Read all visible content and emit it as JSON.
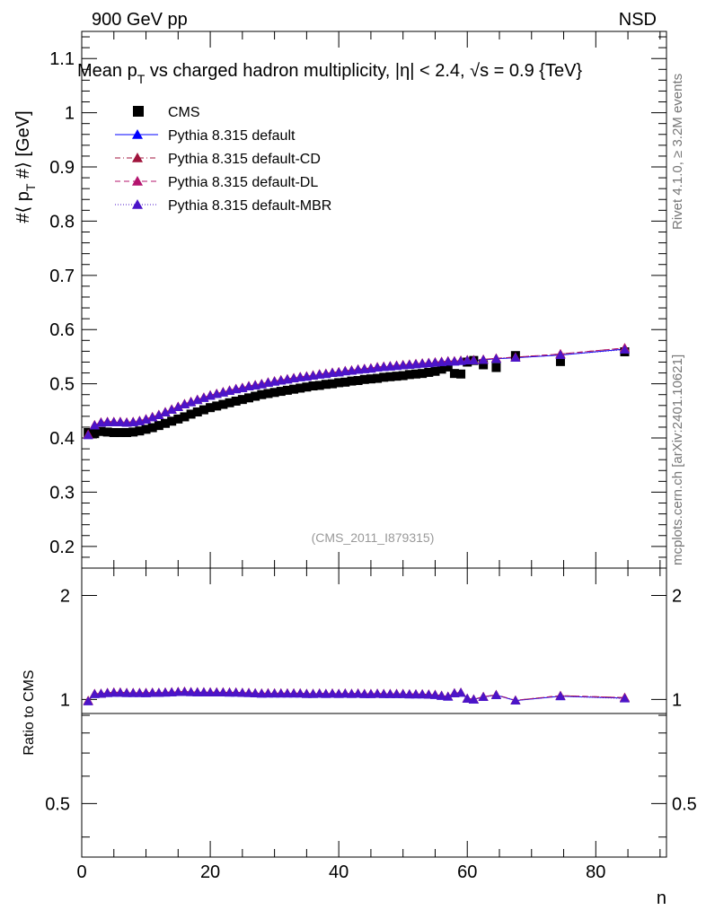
{
  "header": {
    "left": "900 GeV pp",
    "right": "NSD",
    "title": "Mean p",
    "title_sub": "T",
    "title_rest": " vs charged hadron multiplicity, |η| < 2.4, √s = 0.9 {TeV}"
  },
  "side_labels": {
    "rivet": "Rivet 4.1.0, ≥ 3.2M events",
    "mcplots": "mcplots.cern.ch [arXiv:2401.10621]"
  },
  "watermark": "(CMS_2011_I879315)",
  "colors": {
    "cms": "#000000",
    "default": "#0000ff",
    "cd": "#a0143c",
    "dl": "#b4146e",
    "mbr": "#4b14c8"
  },
  "chart_data": [
    {
      "type": "scatter",
      "panel": "main",
      "title": "Mean pT vs charged hadron multiplicity, |η| < 2.4, √s = 0.9 {TeV}",
      "ylabel": "#⟨ p_T #⟩ [GeV]",
      "xlabel": "n",
      "xlim": [
        0,
        91
      ],
      "ylim": [
        0.16,
        1.15
      ],
      "yticks": [
        0.2,
        0.3,
        0.4,
        0.5,
        0.6,
        0.7,
        0.8,
        0.9,
        1.0,
        1.1
      ],
      "ytick_labels": [
        "0.2",
        "0.3",
        "0.4",
        "0.5",
        "0.6",
        "0.7",
        "0.8",
        "0.9",
        "1",
        "1.1"
      ],
      "legend": [
        "CMS",
        "Pythia 8.315 default",
        "Pythia 8.315 default-CD",
        "Pythia 8.315 default-DL",
        "Pythia 8.315 default-MBR"
      ],
      "legend_placement": "top-left",
      "x": [
        1,
        2,
        3,
        4,
        5,
        6,
        7,
        8,
        9,
        10,
        11,
        12,
        13,
        14,
        15,
        16,
        17,
        18,
        19,
        20,
        21,
        22,
        23,
        24,
        25,
        26,
        27,
        28,
        29,
        30,
        31,
        32,
        33,
        34,
        35,
        36,
        37,
        38,
        39,
        40,
        41,
        42,
        43,
        44,
        45,
        46,
        47,
        48,
        49,
        50,
        51,
        52,
        53,
        54,
        55,
        56,
        57,
        58,
        59,
        60,
        61,
        62.5,
        64.5,
        67.5,
        74.5,
        84.5
      ],
      "series": [
        {
          "name": "CMS",
          "values": [
            0.41,
            0.408,
            0.412,
            0.411,
            0.41,
            0.41,
            0.41,
            0.411,
            0.413,
            0.416,
            0.419,
            0.423,
            0.427,
            0.431,
            0.435,
            0.439,
            0.444,
            0.448,
            0.452,
            0.456,
            0.459,
            0.462,
            0.465,
            0.468,
            0.471,
            0.474,
            0.477,
            0.48,
            0.482,
            0.484,
            0.486,
            0.488,
            0.49,
            0.492,
            0.494,
            0.496,
            0.497,
            0.499,
            0.5,
            0.502,
            0.503,
            0.505,
            0.506,
            0.508,
            0.509,
            0.51,
            0.512,
            0.513,
            0.514,
            0.515,
            0.517,
            0.518,
            0.519,
            0.521,
            0.523,
            0.527,
            0.531,
            0.519,
            0.518,
            0.54,
            0.543,
            0.535,
            0.53,
            0.552,
            0.541,
            0.559
          ]
        },
        {
          "name": "Pythia 8.315 default",
          "values": [
            0.406,
            0.423,
            0.428,
            0.429,
            0.429,
            0.429,
            0.428,
            0.429,
            0.431,
            0.434,
            0.438,
            0.442,
            0.447,
            0.452,
            0.457,
            0.462,
            0.466,
            0.47,
            0.474,
            0.478,
            0.481,
            0.484,
            0.487,
            0.49,
            0.492,
            0.495,
            0.497,
            0.499,
            0.502,
            0.504,
            0.506,
            0.508,
            0.51,
            0.512,
            0.513,
            0.515,
            0.517,
            0.518,
            0.52,
            0.521,
            0.523,
            0.524,
            0.526,
            0.527,
            0.528,
            0.53,
            0.531,
            0.532,
            0.533,
            0.534,
            0.535,
            0.536,
            0.537,
            0.538,
            0.539,
            0.54,
            0.541,
            0.541,
            0.542,
            0.543,
            0.543,
            0.544,
            0.546,
            0.548,
            0.553,
            0.564
          ]
        },
        {
          "name": "Pythia 8.315 default-CD",
          "values": [
            0.407,
            0.424,
            0.429,
            0.43,
            0.43,
            0.43,
            0.429,
            0.43,
            0.432,
            0.435,
            0.439,
            0.443,
            0.448,
            0.453,
            0.458,
            0.463,
            0.467,
            0.471,
            0.475,
            0.479,
            0.482,
            0.485,
            0.488,
            0.491,
            0.493,
            0.496,
            0.498,
            0.5,
            0.503,
            0.505,
            0.507,
            0.509,
            0.511,
            0.513,
            0.514,
            0.516,
            0.518,
            0.519,
            0.521,
            0.522,
            0.524,
            0.525,
            0.527,
            0.528,
            0.529,
            0.531,
            0.532,
            0.533,
            0.534,
            0.535,
            0.536,
            0.537,
            0.538,
            0.539,
            0.54,
            0.541,
            0.542,
            0.542,
            0.543,
            0.544,
            0.544,
            0.545,
            0.547,
            0.549,
            0.555,
            0.566
          ]
        },
        {
          "name": "Pythia 8.315 default-DL",
          "values": [
            0.406,
            0.424,
            0.429,
            0.43,
            0.43,
            0.43,
            0.429,
            0.43,
            0.432,
            0.435,
            0.439,
            0.443,
            0.448,
            0.453,
            0.458,
            0.463,
            0.467,
            0.471,
            0.475,
            0.479,
            0.482,
            0.485,
            0.488,
            0.491,
            0.493,
            0.496,
            0.498,
            0.5,
            0.503,
            0.505,
            0.507,
            0.509,
            0.511,
            0.513,
            0.514,
            0.516,
            0.518,
            0.519,
            0.521,
            0.522,
            0.524,
            0.525,
            0.527,
            0.528,
            0.529,
            0.531,
            0.532,
            0.533,
            0.534,
            0.535,
            0.536,
            0.537,
            0.538,
            0.539,
            0.54,
            0.541,
            0.542,
            0.542,
            0.543,
            0.544,
            0.544,
            0.545,
            0.547,
            0.549,
            0.555,
            0.566
          ]
        },
        {
          "name": "Pythia 8.315 default-MBR",
          "values": [
            0.405,
            0.423,
            0.428,
            0.429,
            0.429,
            0.429,
            0.428,
            0.429,
            0.431,
            0.434,
            0.438,
            0.442,
            0.447,
            0.452,
            0.457,
            0.462,
            0.466,
            0.47,
            0.474,
            0.478,
            0.481,
            0.484,
            0.487,
            0.49,
            0.492,
            0.495,
            0.497,
            0.499,
            0.502,
            0.504,
            0.506,
            0.508,
            0.51,
            0.512,
            0.513,
            0.515,
            0.517,
            0.518,
            0.52,
            0.521,
            0.523,
            0.524,
            0.526,
            0.527,
            0.528,
            0.53,
            0.531,
            0.532,
            0.533,
            0.534,
            0.535,
            0.536,
            0.537,
            0.538,
            0.539,
            0.54,
            0.541,
            0.541,
            0.542,
            0.543,
            0.543,
            0.544,
            0.546,
            0.548,
            0.553,
            0.563
          ]
        }
      ]
    },
    {
      "type": "line",
      "panel": "ratio",
      "ylabel": "Ratio to CMS",
      "xlabel": "n",
      "xlim": [
        0,
        91
      ],
      "ylim": [
        0.35,
        2.4
      ],
      "yscale": "log",
      "yticks": [
        0.5,
        1,
        2
      ],
      "ytick_labels": [
        "0.5",
        "1",
        "2"
      ],
      "xticks": [
        0,
        20,
        40,
        60,
        80
      ],
      "xtick_labels": [
        "0",
        "20",
        "40",
        "60",
        "80"
      ],
      "x": [
        1,
        2,
        3,
        4,
        5,
        6,
        7,
        8,
        9,
        10,
        11,
        12,
        13,
        14,
        15,
        16,
        17,
        18,
        19,
        20,
        21,
        22,
        23,
        24,
        25,
        26,
        27,
        28,
        29,
        30,
        31,
        32,
        33,
        34,
        35,
        36,
        37,
        38,
        39,
        40,
        41,
        42,
        43,
        44,
        45,
        46,
        47,
        48,
        49,
        50,
        51,
        52,
        53,
        54,
        55,
        56,
        57,
        58,
        59,
        60,
        61,
        62.5,
        64.5,
        67.5,
        74.5,
        84.5
      ],
      "series": [
        {
          "name": "Pythia 8.315 default",
          "values": [
            0.99,
            1.037,
            1.039,
            1.044,
            1.046,
            1.046,
            1.044,
            1.044,
            1.044,
            1.043,
            1.045,
            1.045,
            1.047,
            1.049,
            1.051,
            1.052,
            1.05,
            1.049,
            1.049,
            1.048,
            1.048,
            1.048,
            1.047,
            1.047,
            1.045,
            1.044,
            1.042,
            1.04,
            1.041,
            1.041,
            1.041,
            1.041,
            1.041,
            1.041,
            1.038,
            1.038,
            1.04,
            1.038,
            1.04,
            1.038,
            1.04,
            1.038,
            1.04,
            1.037,
            1.037,
            1.039,
            1.037,
            1.037,
            1.037,
            1.037,
            1.035,
            1.035,
            1.035,
            1.033,
            1.031,
            1.025,
            1.019,
            1.042,
            1.046,
            1.006,
            1.0,
            1.017,
            1.03,
            0.993,
            1.022,
            1.009
          ]
        },
        {
          "name": "Pythia 8.315 default-CD",
          "values": [
            0.993,
            1.039,
            1.041,
            1.046,
            1.049,
            1.049,
            1.046,
            1.046,
            1.046,
            1.046,
            1.048,
            1.047,
            1.049,
            1.051,
            1.053,
            1.055,
            1.052,
            1.051,
            1.051,
            1.05,
            1.05,
            1.05,
            1.049,
            1.049,
            1.047,
            1.046,
            1.044,
            1.042,
            1.044,
            1.043,
            1.043,
            1.043,
            1.043,
            1.043,
            1.04,
            1.04,
            1.042,
            1.04,
            1.042,
            1.04,
            1.042,
            1.04,
            1.042,
            1.039,
            1.039,
            1.041,
            1.039,
            1.039,
            1.039,
            1.039,
            1.037,
            1.037,
            1.037,
            1.035,
            1.033,
            1.027,
            1.021,
            1.044,
            1.048,
            1.007,
            1.002,
            1.019,
            1.032,
            0.995,
            1.026,
            1.013
          ]
        },
        {
          "name": "Pythia 8.315 default-DL",
          "values": [
            0.99,
            1.039,
            1.041,
            1.046,
            1.049,
            1.049,
            1.046,
            1.046,
            1.046,
            1.046,
            1.048,
            1.047,
            1.049,
            1.051,
            1.053,
            1.055,
            1.052,
            1.051,
            1.051,
            1.05,
            1.05,
            1.05,
            1.049,
            1.049,
            1.047,
            1.046,
            1.044,
            1.042,
            1.044,
            1.043,
            1.043,
            1.043,
            1.043,
            1.043,
            1.04,
            1.04,
            1.042,
            1.04,
            1.042,
            1.04,
            1.042,
            1.04,
            1.042,
            1.039,
            1.039,
            1.041,
            1.039,
            1.039,
            1.039,
            1.039,
            1.037,
            1.037,
            1.037,
            1.035,
            1.033,
            1.027,
            1.021,
            1.044,
            1.048,
            1.007,
            1.002,
            1.019,
            1.032,
            0.995,
            1.026,
            1.013
          ]
        },
        {
          "name": "Pythia 8.315 default-MBR",
          "values": [
            0.988,
            1.037,
            1.039,
            1.044,
            1.046,
            1.046,
            1.044,
            1.044,
            1.044,
            1.043,
            1.045,
            1.045,
            1.047,
            1.049,
            1.051,
            1.052,
            1.05,
            1.049,
            1.049,
            1.048,
            1.048,
            1.048,
            1.047,
            1.047,
            1.045,
            1.044,
            1.042,
            1.04,
            1.041,
            1.041,
            1.041,
            1.041,
            1.041,
            1.041,
            1.038,
            1.038,
            1.04,
            1.038,
            1.04,
            1.038,
            1.04,
            1.038,
            1.04,
            1.037,
            1.037,
            1.039,
            1.037,
            1.037,
            1.037,
            1.037,
            1.035,
            1.035,
            1.035,
            1.033,
            1.031,
            1.025,
            1.019,
            1.042,
            1.046,
            1.006,
            1.0,
            1.017,
            1.03,
            0.993,
            1.022,
            1.007
          ]
        }
      ]
    }
  ]
}
